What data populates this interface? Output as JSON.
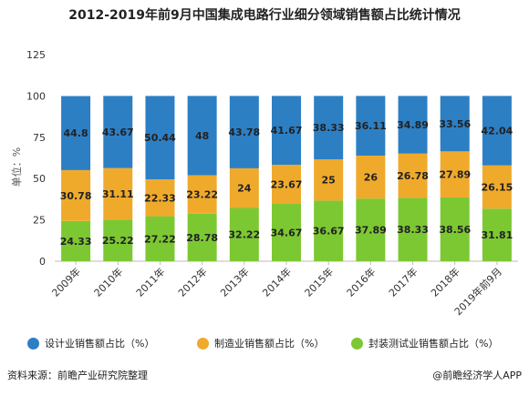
{
  "chart_data": {
    "type": "bar",
    "stacked": true,
    "title": "2012-2019年前9月中国集成电路行业细分领域销售额占比统计情况",
    "ylabel": "单位：%",
    "ylim": [
      0,
      125
    ],
    "yticks": [
      0,
      25,
      50,
      75,
      100,
      125
    ],
    "categories": [
      "2009年",
      "2010年",
      "2011年",
      "2012年",
      "2013年",
      "2014年",
      "2015年",
      "2016年",
      "2017年",
      "2018年",
      "2019年前9月"
    ],
    "series": [
      {
        "name": "封装测试业销售额占比（%）",
        "color": "#7cc832",
        "values": [
          24.33,
          25.22,
          27.22,
          28.78,
          32.22,
          34.67,
          36.67,
          37.89,
          38.33,
          38.56,
          31.81
        ],
        "labels": [
          "24.33",
          "25.22",
          "27.22",
          "28.78",
          "32.22",
          "34.67",
          "36.67",
          "37.89",
          "38.33",
          "38.56",
          "31.81"
        ]
      },
      {
        "name": "制造业销售额占比（%）",
        "color": "#efaa2c",
        "values": [
          30.78,
          31.11,
          22.33,
          23.22,
          24,
          23.67,
          25,
          26,
          26.78,
          27.89,
          26.15
        ],
        "labels": [
          "30.78",
          "31.11",
          "22.33",
          "23.22",
          "24",
          "23.67",
          "25",
          "26",
          "26.78",
          "27.89",
          "26.15"
        ]
      },
      {
        "name": "设计业销售额占比（%）",
        "color": "#2d7fc4",
        "values": [
          44.8,
          43.67,
          50.44,
          48,
          43.78,
          41.67,
          38.33,
          36.11,
          34.89,
          33.56,
          42.04
        ],
        "labels": [
          "44.8",
          "43.67",
          "50.44",
          "48",
          "43.78",
          "41.67",
          "38.33",
          "36.11",
          "34.89",
          "33.56",
          "42.04"
        ]
      }
    ],
    "legend_position": "bottom",
    "grid": false
  },
  "legend": [
    {
      "label": "设计业销售额占比（%）",
      "color": "#2d7fc4"
    },
    {
      "label": "制造业销售额占比（%）",
      "color": "#efaa2c"
    },
    {
      "label": "封装测试业销售额占比（%）",
      "color": "#7cc832"
    }
  ],
  "footer": {
    "source": "资料来源：前瞻产业研究院整理",
    "brand": "@前瞻经济学人APP"
  }
}
